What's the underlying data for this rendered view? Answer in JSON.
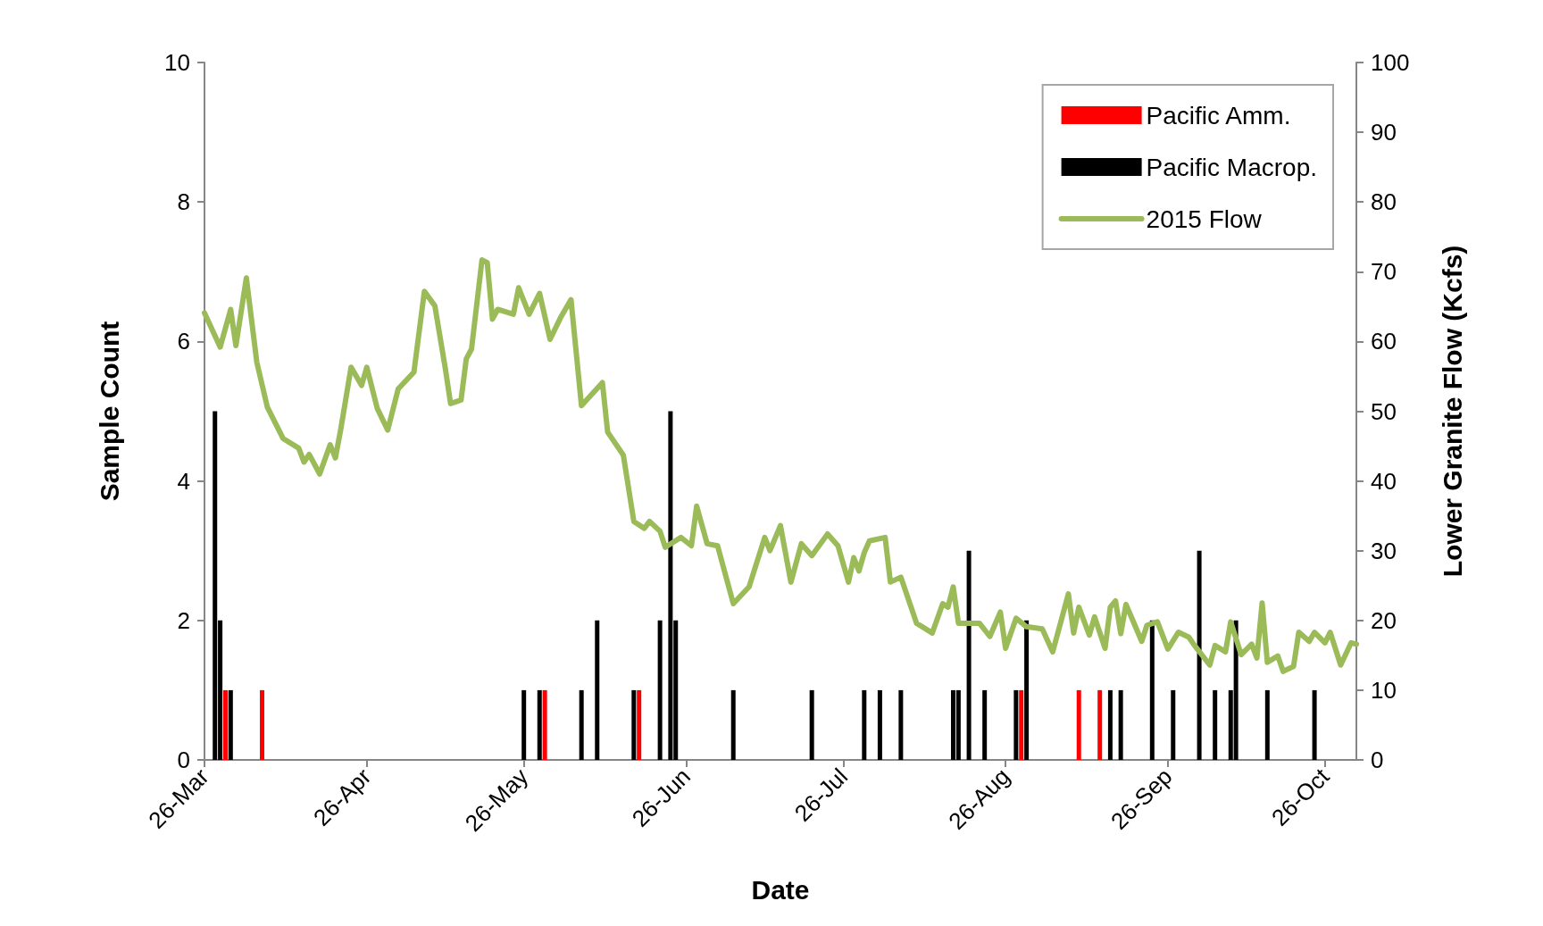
{
  "chart_data": {
    "type": "bar",
    "xlabel": "Date",
    "ylabel": "Sample Count",
    "y2label": "Lower Granite Flow (Kcfs)",
    "legend": "top right",
    "marker": "none",
    "line_style": "solid",
    "xlim": [
      "--03-26",
      "--11-01"
    ],
    "xticks": [
      {
        "value": "--03-26",
        "label": "26-Mar"
      },
      {
        "value": "--04-26",
        "label": "26-Apr"
      },
      {
        "value": "--05-26",
        "label": "26-May"
      },
      {
        "value": "--06-26",
        "label": "26-Jun"
      },
      {
        "value": "--07-26",
        "label": "26-Jul"
      },
      {
        "value": "--08-26",
        "label": "26-Aug"
      },
      {
        "value": "--09-26",
        "label": "26-Sep"
      },
      {
        "value": "--10-26",
        "label": "26-Oct"
      }
    ],
    "ylim": [
      0,
      10
    ],
    "yticks": [
      0,
      2,
      4,
      6,
      8,
      10
    ],
    "y2lim": [
      0,
      100
    ],
    "y2ticks": [
      0,
      10,
      20,
      30,
      40,
      50,
      60,
      70,
      80,
      90,
      100
    ],
    "series": [
      {
        "name": "Pacific Amm.",
        "color": "#ff0000",
        "x": [
          "--03-30",
          "--04-06",
          "--05-30",
          "--06-17",
          "--08-29",
          "--09-09",
          "--09-13"
        ],
        "values": [
          1,
          1,
          1,
          1,
          1,
          1,
          1
        ]
      },
      {
        "name": "Pacific Macrop.",
        "color": "#000000",
        "x": [
          "--03-28",
          "--03-29",
          "--03-31",
          "--05-26",
          "--05-29",
          "--06-06",
          "--06-09",
          "--06-16",
          "--06-21",
          "--06-23",
          "--06-24",
          "--07-05",
          "--07-20",
          "--07-30",
          "--08-02",
          "--08-06",
          "--08-16",
          "--08-17",
          "--08-19",
          "--08-22",
          "--08-28",
          "--08-30",
          "--09-15",
          "--09-17",
          "--09-23",
          "--09-27",
          "--10-02",
          "--10-05",
          "--10-08",
          "--10-09",
          "--10-15",
          "--10-24"
        ],
        "values": [
          5,
          2,
          1,
          1,
          1,
          1,
          2,
          1,
          2,
          5,
          2,
          1,
          1,
          1,
          1,
          1,
          1,
          1,
          3,
          1,
          1,
          2,
          1,
          1,
          2,
          1,
          3,
          1,
          1,
          2,
          1,
          1
        ]
      },
      {
        "name": "2015 Flow",
        "type": "line",
        "axis": "y2",
        "color": "#9bbb59",
        "x": [
          "--03-26",
          "--03-29",
          "--03-31",
          "--04-01",
          "--04-03",
          "--04-05",
          "--04-07",
          "--04-10",
          "--04-13",
          "--04-14",
          "--04-15",
          "--04-17",
          "--04-19",
          "--04-20",
          "--04-21",
          "--04-23",
          "--04-25",
          "--04-26",
          "--04-28",
          "--04-30",
          "--05-02",
          "--05-05",
          "--05-07",
          "--05-09",
          "--05-11",
          "--05-12",
          "--05-14",
          "--05-15",
          "--05-16",
          "--05-18",
          "--05-19",
          "--05-20",
          "--05-21",
          "--05-24",
          "--05-25",
          "--05-27",
          "--05-29",
          "--05-31",
          "--06-02",
          "--06-04",
          "--06-06",
          "--06-10",
          "--06-11",
          "--06-14",
          "--06-16",
          "--06-18",
          "--06-19",
          "--06-21",
          "--06-22",
          "--06-25",
          "--06-27",
          "--06-28",
          "--06-30",
          "--07-02",
          "--07-05",
          "--07-08",
          "--07-11",
          "--07-12",
          "--07-14",
          "--07-16",
          "--07-18",
          "--07-20",
          "--07-23",
          "--07-25",
          "--07-27",
          "--07-28",
          "--07-29",
          "--07-30",
          "--07-31",
          "--08-03",
          "--08-04",
          "--08-06",
          "--08-09",
          "--08-12",
          "--08-14",
          "--08-15",
          "--08-16",
          "--08-17",
          "--08-21",
          "--08-23",
          "--08-25",
          "--08-26",
          "--08-28",
          "--08-30",
          "--09-02",
          "--09-04",
          "--09-07",
          "--09-08",
          "--09-09",
          "--09-11",
          "--09-12",
          "--09-14",
          "--09-15",
          "--09-16",
          "--09-17",
          "--09-18",
          "--09-21",
          "--09-22",
          "--09-24",
          "--09-26",
          "--09-28",
          "--09-30",
          "--10-01",
          "--10-04",
          "--10-05",
          "--10-07",
          "--10-08",
          "--10-10",
          "--10-12",
          "--10-13",
          "--10-14",
          "--10-15",
          "--10-17",
          "--10-18",
          "--10-20",
          "--10-21",
          "--10-23",
          "--10-24",
          "--10-26",
          "--10-27",
          "--10-29",
          "--10-31",
          "--11-01"
        ],
        "values": [
          64.1,
          59.2,
          64.6,
          59.4,
          69.1,
          57.0,
          50.6,
          46.1,
          44.7,
          42.7,
          43.8,
          41.0,
          45.2,
          43.3,
          47.3,
          56.3,
          53.7,
          56.3,
          50.4,
          47.3,
          53.2,
          55.6,
          67.2,
          65.1,
          56.1,
          51.1,
          51.6,
          57.5,
          58.9,
          71.7,
          71.3,
          63.2,
          64.6,
          63.9,
          67.7,
          63.9,
          66.9,
          60.3,
          63.4,
          66.0,
          50.8,
          54.1,
          47.0,
          43.7,
          34.2,
          33.2,
          34.2,
          32.8,
          30.5,
          31.9,
          30.7,
          36.4,
          31.0,
          30.7,
          22.4,
          24.8,
          31.9,
          30.0,
          33.6,
          25.5,
          31.0,
          29.3,
          32.4,
          30.7,
          25.5,
          29.0,
          27.1,
          29.7,
          31.4,
          31.9,
          25.5,
          26.2,
          19.6,
          18.2,
          22.4,
          21.9,
          24.8,
          19.6,
          19.6,
          17.7,
          21.2,
          16.0,
          20.3,
          19.1,
          18.8,
          15.5,
          23.8,
          18.2,
          21.9,
          17.9,
          20.5,
          16.0,
          21.9,
          22.8,
          18.1,
          22.3,
          17.0,
          19.3,
          19.8,
          15.9,
          18.3,
          17.6,
          16.5,
          13.6,
          16.4,
          15.5,
          19.8,
          15.1,
          16.6,
          14.6,
          22.5,
          14.0,
          14.9,
          12.7,
          13.4,
          18.3,
          17.0,
          18.3,
          16.8,
          18.3,
          13.6,
          16.8,
          16.6
        ]
      }
    ]
  }
}
